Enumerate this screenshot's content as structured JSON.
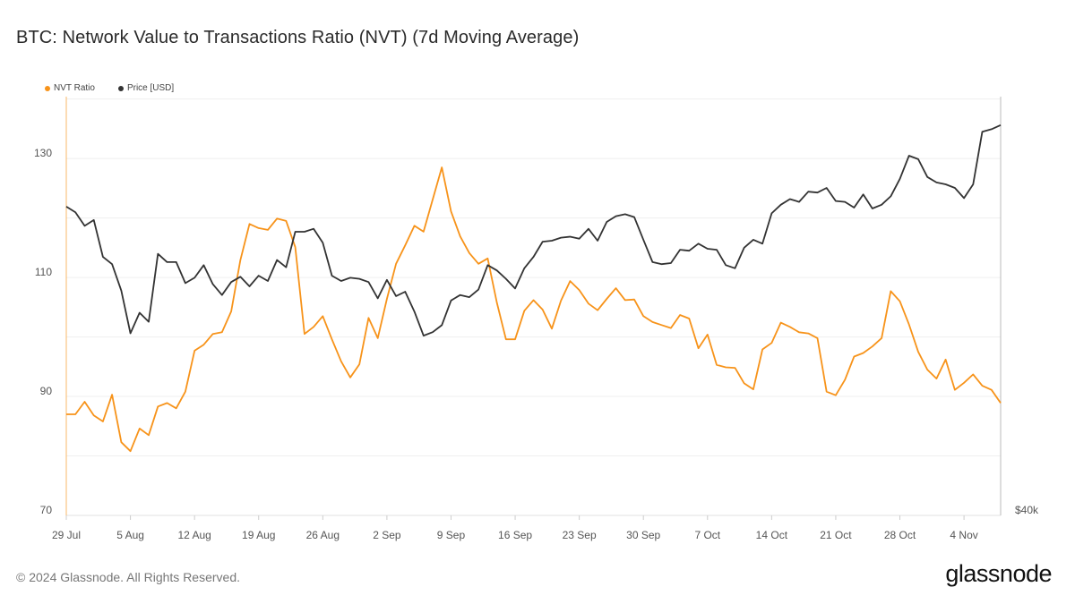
{
  "title": "BTC: Network Value to Transactions Ratio (NVT) (7d Moving Average)",
  "footer": "© 2024 Glassnode. All Rights Reserved.",
  "logo_text": "glassnode",
  "chart_data": {
    "type": "line",
    "title": "BTC: Network Value to Transactions Ratio (NVT) (7d Moving Average)",
    "x_label": "",
    "x_unit": "days since 29 Jul 2024",
    "x_range": [
      0,
      102
    ],
    "x_ticks": [
      {
        "day": 0,
        "label": "29 Jul"
      },
      {
        "day": 7,
        "label": "5 Aug"
      },
      {
        "day": 14,
        "label": "12 Aug"
      },
      {
        "day": 21,
        "label": "19 Aug"
      },
      {
        "day": 28,
        "label": "26 Aug"
      },
      {
        "day": 35,
        "label": "2 Sep"
      },
      {
        "day": 42,
        "label": "9 Sep"
      },
      {
        "day": 49,
        "label": "16 Sep"
      },
      {
        "day": 56,
        "label": "23 Sep"
      },
      {
        "day": 63,
        "label": "30 Sep"
      },
      {
        "day": 70,
        "label": "7 Oct"
      },
      {
        "day": 77,
        "label": "14 Oct"
      },
      {
        "day": 84,
        "label": "21 Oct"
      },
      {
        "day": 91,
        "label": "28 Oct"
      },
      {
        "day": 98,
        "label": "4 Nov"
      }
    ],
    "y_left": {
      "range": [
        70,
        140.4
      ],
      "ticks": [
        "70",
        "90",
        "110",
        "130"
      ],
      "tick_values": [
        70,
        90,
        110,
        130
      ],
      "grid_step": 10,
      "scale": "linear"
    },
    "y_right": {
      "scale": "log",
      "unit": "USD thousands",
      "range": [
        40,
        78.4
      ],
      "ticks": [
        "$40k"
      ],
      "tick_values": [
        40
      ]
    },
    "grid": true,
    "legend_position": "top-left",
    "series": [
      {
        "name": "NVT Ratio",
        "axis": "left",
        "color": "#f7931a",
        "values": [
          87.0,
          87.0,
          89.1,
          86.8,
          85.8,
          90.3,
          82.3,
          80.8,
          84.6,
          83.5,
          88.3,
          88.9,
          88.0,
          90.8,
          97.7,
          98.7,
          100.5,
          100.8,
          104.3,
          112.9,
          119.0,
          118.3,
          118.0,
          119.9,
          119.5,
          115.1,
          100.5,
          101.7,
          103.5,
          99.6,
          95.9,
          93.2,
          95.4,
          103.2,
          99.8,
          106.4,
          112.3,
          115.4,
          118.7,
          117.7,
          123.1,
          128.5,
          121.1,
          116.9,
          114.1,
          112.3,
          113.2,
          105.8,
          99.6,
          99.6,
          104.4,
          106.2,
          104.6,
          101.4,
          106.1,
          109.4,
          107.9,
          105.6,
          104.5,
          106.4,
          108.2,
          106.2,
          106.3,
          103.5,
          102.5,
          102.0,
          101.5,
          103.7,
          103.1,
          98.1,
          100.4,
          95.3,
          94.9,
          94.8,
          92.2,
          91.2,
          97.9,
          99.0,
          102.4,
          101.7,
          100.8,
          100.6,
          99.8,
          90.8,
          90.2,
          92.8,
          96.7,
          97.3,
          98.4,
          99.8,
          107.7,
          106.0,
          102.1,
          97.5,
          94.5,
          93.0,
          96.2,
          91.1,
          92.3,
          93.7,
          91.8,
          91.1,
          88.9
        ]
      },
      {
        "name": "Price [USD]",
        "axis": "right",
        "color": "#333333",
        "values": [
          65.7,
          65.1,
          63.7,
          64.3,
          60.6,
          59.9,
          57.4,
          53.6,
          55.4,
          54.6,
          60.9,
          60.1,
          60.1,
          58.1,
          58.6,
          59.8,
          58.0,
          57.0,
          58.2,
          58.7,
          57.8,
          58.8,
          58.3,
          60.3,
          59.6,
          63.1,
          63.1,
          63.4,
          62.0,
          58.8,
          58.3,
          58.6,
          58.5,
          58.2,
          56.7,
          58.4,
          56.9,
          57.3,
          55.5,
          53.4,
          53.7,
          54.3,
          56.5,
          57.0,
          56.8,
          57.5,
          59.8,
          59.3,
          58.5,
          57.6,
          59.5,
          60.6,
          62.1,
          62.2,
          62.5,
          62.6,
          62.4,
          63.4,
          62.2,
          64.1,
          64.7,
          64.9,
          64.6,
          62.3,
          60.1,
          59.9,
          60.0,
          61.3,
          61.2,
          61.9,
          61.4,
          61.3,
          59.8,
          59.5,
          61.5,
          62.3,
          61.9,
          65.0,
          65.9,
          66.5,
          66.2,
          67.3,
          67.2,
          67.7,
          66.3,
          66.2,
          65.6,
          67.0,
          65.5,
          65.9,
          66.8,
          68.7,
          71.3,
          70.9,
          68.9,
          68.3,
          68.1,
          67.7,
          66.6,
          68.1,
          74.1,
          74.4,
          74.9
        ]
      }
    ]
  }
}
